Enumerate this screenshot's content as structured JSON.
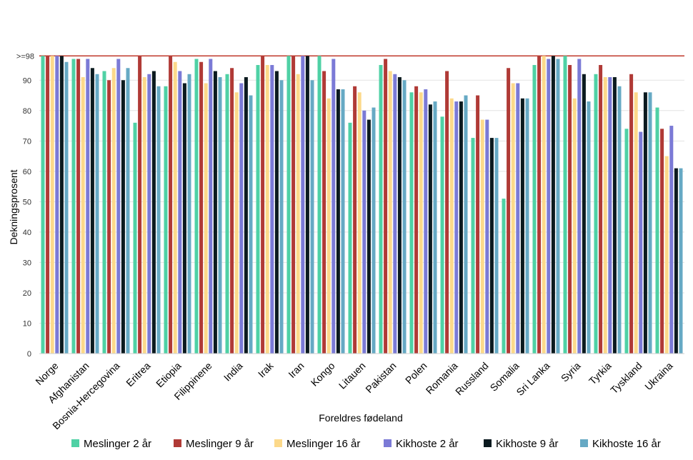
{
  "chart_data": {
    "type": "bar",
    "ylabel": "Dekningsprosent",
    "xlabel": "Foreldres fødeland",
    "ylim": [
      0,
      99
    ],
    "yticks": [
      0,
      10,
      20,
      30,
      40,
      50,
      60,
      70,
      80,
      90
    ],
    "ytick_labels": [
      "0",
      "10",
      "20",
      "30",
      "40",
      "50",
      "60",
      "70",
      "80",
      "90"
    ],
    "reference_line": {
      "value": 98,
      "label": ">=98",
      "color": "#c0392b"
    },
    "grid": true,
    "legend_position": "bottom",
    "categories": [
      "Norge",
      "Afghanistan",
      "Bosnia-Hercegovina",
      "Eritrea",
      "Etiopia",
      "Filippinene",
      "India",
      "Irak",
      "Iran",
      "Kongo",
      "Litauen",
      "Pakistan",
      "Polen",
      "Romania",
      "Russland",
      "Somalia",
      "Sri Lanka",
      "Syria",
      "Tyrkia",
      "Tyskland",
      "Ukraina"
    ],
    "series": [
      {
        "name": "Meslinger 2 år",
        "color": "#4fd1a5",
        "values": [
          98,
          97,
          93,
          76,
          88,
          97,
          92,
          95,
          98,
          98,
          76,
          95,
          86,
          78,
          71,
          51,
          95,
          98,
          92,
          74,
          81
        ]
      },
      {
        "name": "Meslinger 9 år",
        "color": "#b03a36",
        "values": [
          98,
          97,
          90,
          98,
          98,
          96,
          94,
          98,
          98,
          93,
          88,
          97,
          88,
          93,
          85,
          94,
          98,
          95,
          95,
          92,
          74
        ]
      },
      {
        "name": "Meslinger 16 år",
        "color": "#fcd98a",
        "values": [
          98,
          91,
          94,
          91,
          96,
          89,
          86,
          95,
          92,
          84,
          86,
          93,
          86,
          84,
          77,
          89,
          98,
          84,
          91,
          86,
          65
        ]
      },
      {
        "name": "Kikhoste 2 år",
        "color": "#7b7ad6",
        "values": [
          98,
          97,
          97,
          92,
          93,
          97,
          89,
          95,
          98,
          97,
          80,
          92,
          87,
          83,
          77,
          89,
          97,
          97,
          91,
          73,
          75
        ]
      },
      {
        "name": "Kikhoste 9 år",
        "color": "#0b1a1f",
        "values": [
          98,
          94,
          90,
          93,
          89,
          93,
          91,
          93,
          98,
          87,
          77,
          91,
          82,
          83,
          71,
          84,
          98,
          92,
          91,
          86,
          61
        ]
      },
      {
        "name": "Kikhoste 16 år",
        "color": "#66a9c4",
        "values": [
          96,
          92,
          94,
          88,
          92,
          91,
          85,
          90,
          90,
          87,
          81,
          90,
          83,
          85,
          71,
          84,
          97,
          83,
          88,
          86,
          61
        ]
      }
    ]
  }
}
